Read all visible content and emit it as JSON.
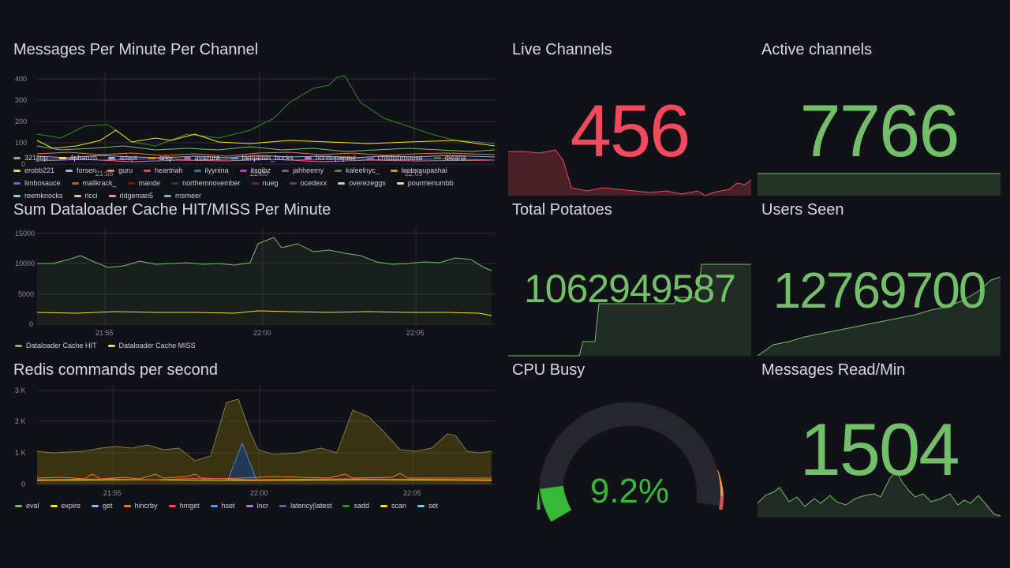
{
  "colors": {
    "bg": "#111217",
    "green": "#73bf69",
    "red": "#f2495c",
    "yellow": "#fade2a",
    "orange": "#ff9830",
    "gauge_green": "#37b837"
  },
  "panels": {
    "messages_per_minute": {
      "title": "Messages Per Minute Per Channel",
      "y_ticks": [
        "400",
        "300",
        "200",
        "100",
        "0"
      ],
      "x_ticks": [
        "21:55",
        "22:00",
        "22:05"
      ],
      "legend": [
        {
          "name": "321jmp",
          "color": "#73bf69"
        },
        {
          "name": "4phanzo",
          "color": "#fade2a"
        },
        {
          "name": "adapt",
          "color": "#8ab8ff"
        },
        {
          "name": "arky",
          "color": "#ff780a"
        },
        {
          "name": "avazura",
          "color": "#f2495c"
        },
        {
          "name": "benjamin_bucks",
          "color": "#5794f2"
        },
        {
          "name": "bonitopapaxl",
          "color": "#b877d9"
        },
        {
          "name": "childishmoose",
          "color": "#705da0"
        },
        {
          "name": "diearia",
          "color": "#37872d"
        },
        {
          "name": "erobb221",
          "color": "#fade2a"
        },
        {
          "name": "forsen",
          "color": "#6ed0e0"
        },
        {
          "name": "guru",
          "color": "#ef843c"
        },
        {
          "name": "heartriah",
          "color": "#e24d42"
        },
        {
          "name": "ilyynina",
          "color": "#1f78c1"
        },
        {
          "name": "itsgibz",
          "color": "#ba43a9"
        },
        {
          "name": "jahheemy",
          "color": "#705da0"
        },
        {
          "name": "kaleelnyc_",
          "color": "#508642"
        },
        {
          "name": "lestersupashai",
          "color": "#cca300"
        },
        {
          "name": "limbosauce",
          "color": "#447ebc"
        },
        {
          "name": "mallkrack_",
          "color": "#c15c17"
        },
        {
          "name": "mande",
          "color": "#890f02"
        },
        {
          "name": "northernnovember",
          "color": "#0a437c"
        },
        {
          "name": "nueg",
          "color": "#6d1f62"
        },
        {
          "name": "ocedexx",
          "color": "#584477"
        },
        {
          "name": "overezeggs",
          "color": "#b7dbab"
        },
        {
          "name": "pourmenumbb",
          "color": "#f4d598"
        },
        {
          "name": "reemknocks",
          "color": "#70dbed"
        },
        {
          "name": "ricci",
          "color": "#f9ba8f"
        },
        {
          "name": "ridgeman5",
          "color": "#f29191"
        },
        {
          "name": "rnsmeer",
          "color": "#82b5d8"
        }
      ]
    },
    "dataloader": {
      "title": "Sum Dataloader Cache HIT/MISS Per Minute",
      "y_ticks": [
        "15000",
        "10000",
        "5000",
        "0"
      ],
      "x_ticks": [
        "21:55",
        "22:00",
        "22:05"
      ],
      "legend": [
        {
          "name": "Dataloader Cache HIT",
          "color": "#73bf69"
        },
        {
          "name": "Dataloader Cache MISS",
          "color": "#fade2a"
        }
      ]
    },
    "redis": {
      "title": "Redis commands per second",
      "y_ticks": [
        "3 K",
        "2 K",
        "1 K",
        "0"
      ],
      "x_ticks": [
        "21:55",
        "22:00",
        "22:05"
      ],
      "legend": [
        {
          "name": "eval",
          "color": "#73bf69"
        },
        {
          "name": "expire",
          "color": "#fade2a"
        },
        {
          "name": "get",
          "color": "#8ab8ff"
        },
        {
          "name": "hincrby",
          "color": "#ff780a"
        },
        {
          "name": "hmget",
          "color": "#f2495c"
        },
        {
          "name": "hset",
          "color": "#5794f2"
        },
        {
          "name": "incr",
          "color": "#b877d9"
        },
        {
          "name": "latency|latest",
          "color": "#705da0"
        },
        {
          "name": "sadd",
          "color": "#37872d"
        },
        {
          "name": "scan",
          "color": "#fade2a"
        },
        {
          "name": "set",
          "color": "#6ed0e0"
        }
      ]
    },
    "live_channels": {
      "title": "Live Channels",
      "value": "456"
    },
    "active_channels": {
      "title": "Active channels",
      "value": "7766"
    },
    "total_potatoes": {
      "title": "Total Potatoes",
      "value": "1062949587"
    },
    "users_seen": {
      "title": "Users Seen",
      "value": "12769700"
    },
    "cpu_busy": {
      "title": "CPU Busy",
      "value": "9.2%",
      "percent": 9.2
    },
    "messages_read": {
      "title": "Messages Read/Min",
      "value": "1504"
    }
  }
}
